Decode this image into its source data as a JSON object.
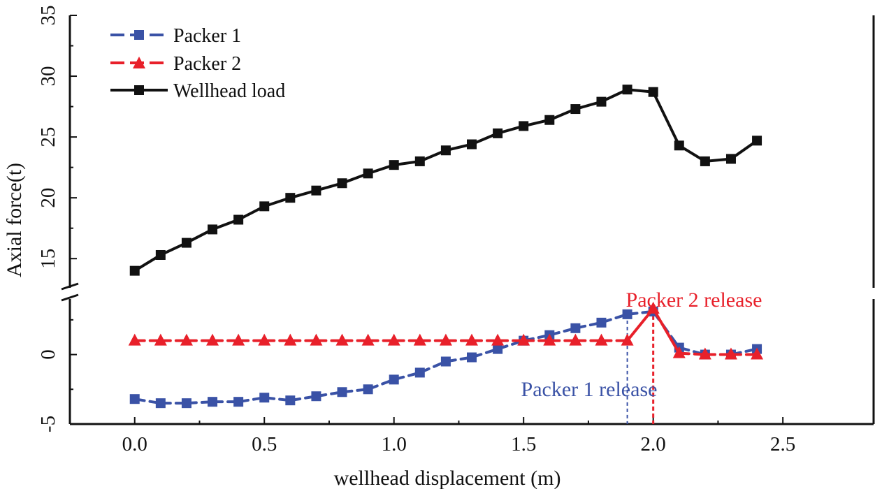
{
  "chart_data": {
    "type": "line",
    "xlabel": "wellhead displacement (m)",
    "ylabel": "Axial force(t)",
    "xlim": [
      -0.25,
      2.85
    ],
    "x_ticks": [
      "0.0",
      "0.5",
      "1.0",
      "1.5",
      "2.0",
      "2.5"
    ],
    "x_tick_values": [
      0,
      0.5,
      1.0,
      1.5,
      2.0,
      2.5
    ],
    "broken_y_axis": true,
    "upper_panel": {
      "ylim": [
        12.6,
        35
      ],
      "ticks": [
        "15",
        "20",
        "25",
        "30",
        "35"
      ],
      "tick_values": [
        15,
        20,
        25,
        30,
        35
      ]
    },
    "lower_panel": {
      "ylim": [
        -5,
        4
      ],
      "ticks": [
        "-5",
        "0"
      ],
      "tick_values": [
        -5,
        0
      ]
    },
    "x": [
      0.0,
      0.1,
      0.2,
      0.3,
      0.4,
      0.5,
      0.6,
      0.7,
      0.8,
      0.9,
      1.0,
      1.1,
      1.2,
      1.3,
      1.4,
      1.5,
      1.6,
      1.7,
      1.8,
      1.9,
      2.0,
      2.1,
      2.2,
      2.3,
      2.4
    ],
    "series": [
      {
        "name": "Packer 1",
        "panel": "lower",
        "color": "#3a52a6",
        "line_style": "dashed",
        "marker": "square",
        "values": [
          -3.2,
          -3.5,
          -3.5,
          -3.4,
          -3.4,
          -3.1,
          -3.3,
          -3.0,
          -2.7,
          -2.5,
          -1.8,
          -1.3,
          -0.5,
          -0.2,
          0.4,
          1.0,
          1.4,
          1.9,
          2.3,
          2.9,
          3.1,
          0.5,
          0.0,
          0.0,
          0.4
        ]
      },
      {
        "name": "Packer 2",
        "panel": "lower",
        "color": "#e8202a",
        "line_style": "dashed",
        "marker": "triangle",
        "values": [
          1.0,
          1.0,
          1.0,
          1.0,
          1.0,
          1.0,
          1.0,
          1.0,
          1.0,
          1.0,
          1.0,
          1.0,
          1.0,
          1.0,
          1.0,
          1.0,
          1.0,
          1.0,
          1.0,
          1.0,
          3.3,
          0.1,
          0.0,
          0.0,
          0.0
        ]
      },
      {
        "name": "Wellhead load",
        "panel": "upper",
        "color": "#111111",
        "line_style": "solid",
        "marker": "square",
        "values": [
          14.0,
          15.3,
          16.3,
          17.4,
          18.2,
          19.3,
          20.0,
          20.6,
          21.2,
          22.0,
          22.7,
          23.0,
          23.9,
          24.4,
          25.3,
          25.9,
          26.4,
          27.3,
          27.9,
          28.9,
          28.7,
          24.3,
          23.0,
          23.2,
          24.7
        ]
      }
    ],
    "annotations": [
      {
        "text": "Packer 1 release",
        "x": 1.9,
        "color": "#3a52a6"
      },
      {
        "text": "Packer 2 release",
        "x": 2.0,
        "color": "#e8202a"
      }
    ],
    "legend_position": "top-left"
  }
}
